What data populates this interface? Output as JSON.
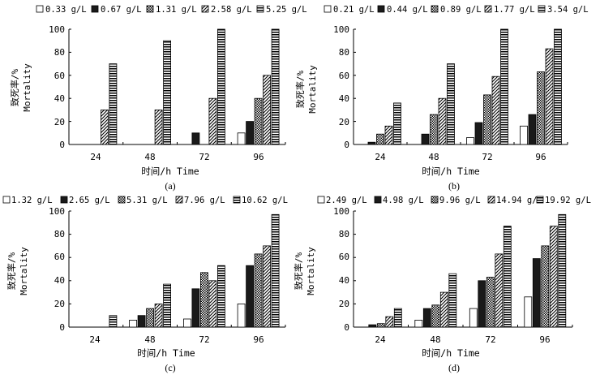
{
  "chart_data": [
    {
      "type": "bar",
      "panel_label": "(a)",
      "categories": [
        "24",
        "48",
        "72",
        "96"
      ],
      "series": [
        {
          "name": "0.33 g/L",
          "values": [
            0,
            0,
            0,
            10
          ]
        },
        {
          "name": "0.67 g/L",
          "values": [
            0,
            0,
            10,
            20
          ]
        },
        {
          "name": "1.31 g/L",
          "values": [
            0,
            0,
            0,
            40
          ]
        },
        {
          "name": "2.58 g/L",
          "values": [
            30,
            30,
            40,
            60
          ]
        },
        {
          "name": "5.25 g/L",
          "values": [
            70,
            90,
            100,
            100
          ]
        }
      ],
      "xlabel": "时间/h Time",
      "ylabel_cn": "致死率/%",
      "ylabel_en": "Mortality",
      "ylim": [
        0,
        100
      ],
      "yticks": [
        "0",
        "20",
        "40",
        "60",
        "80",
        "100"
      ],
      "legend": "top"
    },
    {
      "type": "bar",
      "panel_label": "(b)",
      "categories": [
        "24",
        "48",
        "72",
        "96"
      ],
      "series": [
        {
          "name": "0.21 g/L",
          "values": [
            0,
            0,
            6,
            16
          ]
        },
        {
          "name": "0.44 g/L",
          "values": [
            2,
            9,
            19,
            26
          ]
        },
        {
          "name": "0.89 g/L",
          "values": [
            9,
            26,
            43,
            63
          ]
        },
        {
          "name": "1.77 g/L",
          "values": [
            16,
            40,
            59,
            83
          ]
        },
        {
          "name": "3.54 g/L",
          "values": [
            36,
            70,
            100,
            100
          ]
        }
      ],
      "xlabel": "时间/h Time",
      "ylabel_cn": "致死率/%",
      "ylabel_en": "Mortality",
      "ylim": [
        0,
        100
      ],
      "yticks": [
        "0",
        "20",
        "40",
        "60",
        "80",
        "100"
      ],
      "legend": "top"
    },
    {
      "type": "bar",
      "panel_label": "(c)",
      "categories": [
        "24",
        "48",
        "72",
        "96"
      ],
      "series": [
        {
          "name": "1.32 g/L",
          "values": [
            0,
            6,
            7,
            20
          ]
        },
        {
          "name": "2.65 g/L",
          "values": [
            0,
            10,
            33,
            53
          ]
        },
        {
          "name": "5.31 g/L",
          "values": [
            0,
            16,
            47,
            63
          ]
        },
        {
          "name": "7.96 g/L",
          "values": [
            0,
            20,
            40,
            70
          ]
        },
        {
          "name": "10.62 g/L",
          "values": [
            10,
            37,
            53,
            97
          ]
        }
      ],
      "xlabel": "时间/h Time",
      "ylabel_cn": "致死率/%",
      "ylabel_en": "Mortality",
      "ylim": [
        0,
        100
      ],
      "yticks": [
        "0",
        "20",
        "40",
        "60",
        "80",
        "100"
      ],
      "legend": "top"
    },
    {
      "type": "bar",
      "panel_label": "(d)",
      "categories": [
        "24",
        "48",
        "72",
        "96"
      ],
      "series": [
        {
          "name": "2.49 g/L",
          "values": [
            0,
            6,
            16,
            26
          ]
        },
        {
          "name": "4.98 g/L",
          "values": [
            2,
            16,
            40,
            59
          ]
        },
        {
          "name": "9.96 g/L",
          "values": [
            3,
            19,
            43,
            70
          ]
        },
        {
          "name": "14.94 g/L",
          "values": [
            9,
            30,
            63,
            87
          ]
        },
        {
          "name": "19.92 g/L",
          "values": [
            16,
            46,
            87,
            97
          ]
        }
      ],
      "xlabel": "时间/h Time",
      "ylabel_cn": "致死率/%",
      "ylabel_en": "Mortality",
      "ylim": [
        0,
        100
      ],
      "yticks": [
        "0",
        "20",
        "40",
        "60",
        "80",
        "100"
      ],
      "legend": "top"
    }
  ],
  "colors": {
    "background": "#ffffff",
    "ink": "#000000",
    "dark_fill": "#1a1a1a",
    "light_fill": "#ffffff"
  },
  "series_styles": [
    "white",
    "black",
    "checker",
    "diagonal",
    "hstripe"
  ]
}
